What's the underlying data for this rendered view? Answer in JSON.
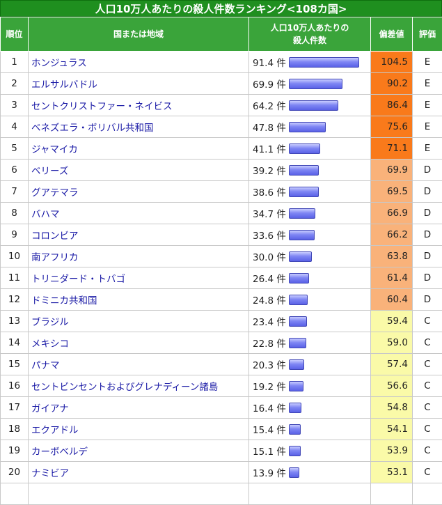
{
  "title": "人口10万人あたりの殺人件数ランキング<108カ国>",
  "headers": {
    "rank": "順位",
    "country": "国または地域",
    "value_line1": "人口10万人あたりの",
    "value_line2": "殺人件数",
    "deviation": "偏差値",
    "grade": "評価"
  },
  "unit": "件",
  "colors": {
    "E": "#f97a1b",
    "D": "#f9b27a",
    "C": "#fafaa8",
    "header": "#3aa43a",
    "title": "#1f8f1f"
  },
  "rows": [
    {
      "rank": "1",
      "name": "ホンジュラス",
      "value": "91.4",
      "dev": "104.5",
      "grade": "E"
    },
    {
      "rank": "2",
      "name": "エルサルバドル",
      "value": "69.9",
      "dev": "90.2",
      "grade": "E"
    },
    {
      "rank": "3",
      "name": "セントクリストファー・ネイビス",
      "value": "64.2",
      "dev": "86.4",
      "grade": "E"
    },
    {
      "rank": "4",
      "name": "ベネズエラ・ボリバル共和国",
      "value": "47.8",
      "dev": "75.6",
      "grade": "E"
    },
    {
      "rank": "5",
      "name": "ジャマイカ",
      "value": "41.1",
      "dev": "71.1",
      "grade": "E"
    },
    {
      "rank": "6",
      "name": "ベリーズ",
      "value": "39.2",
      "dev": "69.9",
      "grade": "D"
    },
    {
      "rank": "7",
      "name": "グアテマラ",
      "value": "38.6",
      "dev": "69.5",
      "grade": "D"
    },
    {
      "rank": "8",
      "name": "バハマ",
      "value": "34.7",
      "dev": "66.9",
      "grade": "D"
    },
    {
      "rank": "9",
      "name": "コロンビア",
      "value": "33.6",
      "dev": "66.2",
      "grade": "D"
    },
    {
      "rank": "10",
      "name": "南アフリカ",
      "value": "30.0",
      "dev": "63.8",
      "grade": "D"
    },
    {
      "rank": "11",
      "name": "トリニダード・トバゴ",
      "value": "26.4",
      "dev": "61.4",
      "grade": "D"
    },
    {
      "rank": "12",
      "name": "ドミニカ共和国",
      "value": "24.8",
      "dev": "60.4",
      "grade": "D"
    },
    {
      "rank": "13",
      "name": "ブラジル",
      "value": "23.4",
      "dev": "59.4",
      "grade": "C"
    },
    {
      "rank": "14",
      "name": "メキシコ",
      "value": "22.8",
      "dev": "59.0",
      "grade": "C"
    },
    {
      "rank": "15",
      "name": "パナマ",
      "value": "20.3",
      "dev": "57.4",
      "grade": "C"
    },
    {
      "rank": "16",
      "name": "セントビンセントおよびグレナディーン諸島",
      "value": "19.2",
      "dev": "56.6",
      "grade": "C"
    },
    {
      "rank": "17",
      "name": "ガイアナ",
      "value": "16.4",
      "dev": "54.8",
      "grade": "C"
    },
    {
      "rank": "18",
      "name": "エクアドル",
      "value": "15.4",
      "dev": "54.1",
      "grade": "C"
    },
    {
      "rank": "19",
      "name": "カーボベルデ",
      "value": "15.1",
      "dev": "53.9",
      "grade": "C"
    },
    {
      "rank": "20",
      "name": "ナミビア",
      "value": "13.9",
      "dev": "53.1",
      "grade": "C"
    },
    {
      "rank": "",
      "name": "",
      "value": "",
      "dev": "",
      "grade": ""
    }
  ]
}
